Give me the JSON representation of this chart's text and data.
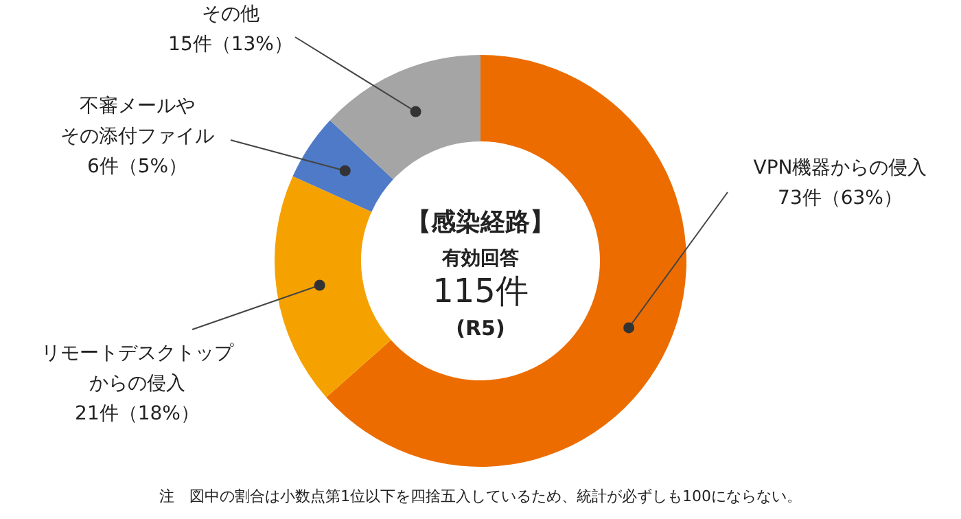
{
  "chart_data": {
    "type": "donut",
    "title": "【感染経路】",
    "subtitle": "有効回答\n115件\n(R5)",
    "categories": [
      "VPN機器からの侵入",
      "リモートデスクトップからの侵入",
      "不審メールやその添付ファイル",
      "その他"
    ],
    "values": [
      73,
      21,
      6,
      15
    ],
    "value_labels": [
      "73件（63%）",
      "21件（18%）",
      "6件（5%）",
      "15件（13%）"
    ],
    "colors": [
      "#ec6c00",
      "#f5a200",
      "#4e7ac7",
      "#a5a5a5"
    ],
    "legend": false,
    "annotations": [
      "注　図中の割合は小数点第1位以下を四捨五入しているため、統計が必ずしも100にならない。"
    ]
  }
}
